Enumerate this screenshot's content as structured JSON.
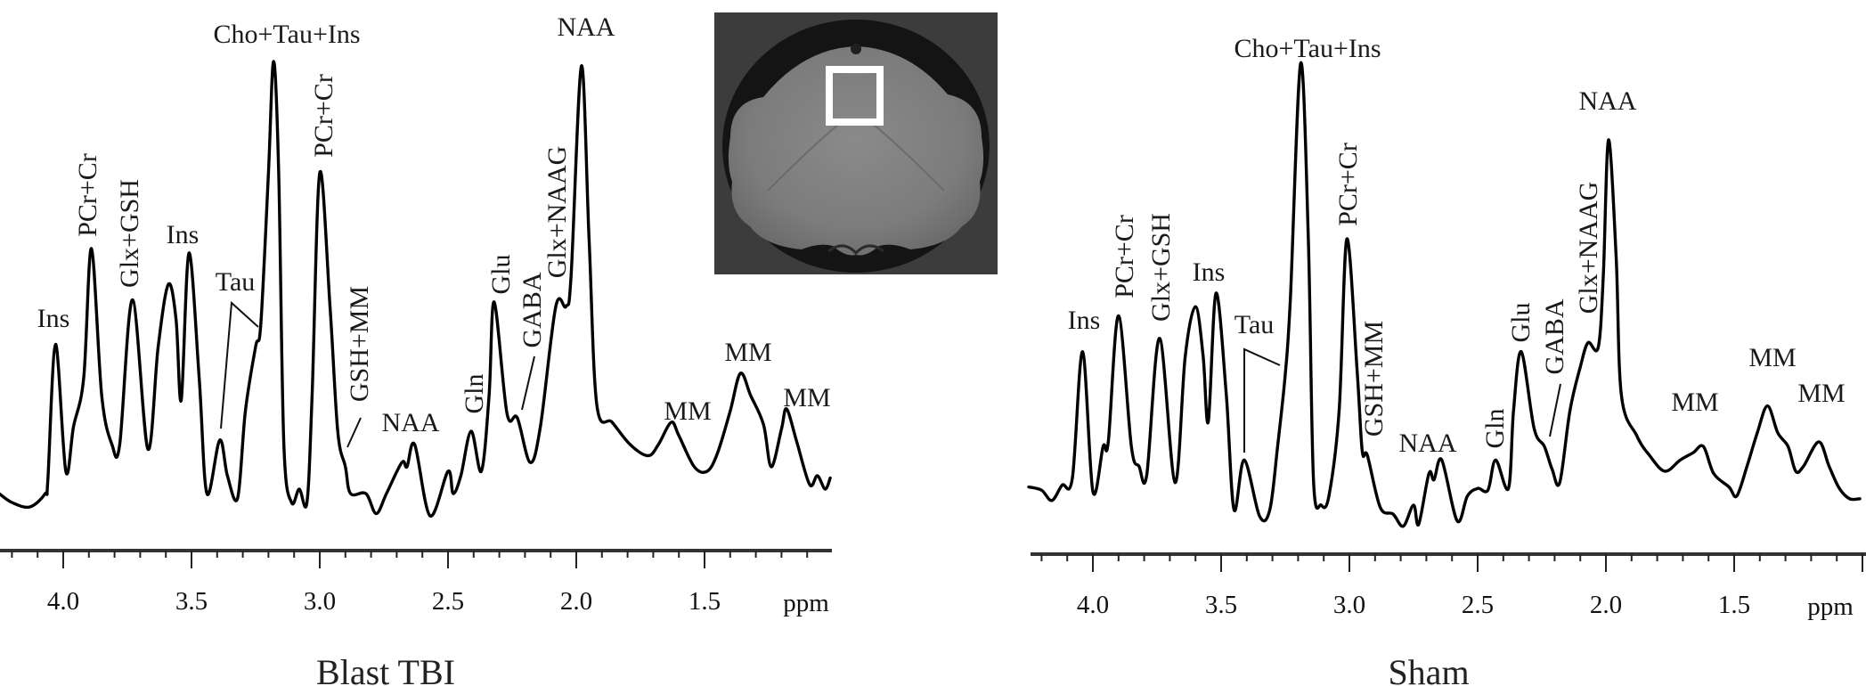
{
  "chart_data": [
    {
      "type": "line",
      "title": "Blast TBI",
      "xlabel": "ppm",
      "ylabel": "",
      "xlim": [
        4.25,
        1.0
      ],
      "x_reversed": true,
      "grid": false,
      "xticks": [
        "4.0",
        "3.5",
        "3.0",
        "2.5",
        "2.0",
        "1.5"
      ],
      "xtick_values": [
        4.0,
        3.5,
        3.0,
        2.5,
        2.0,
        1.5
      ],
      "intensity_units": "arbitrary (tallest peak = 100)",
      "annotations": [
        {
          "text": "Ins",
          "ppm": 4.03
        },
        {
          "text": "PCr+Cr",
          "ppm": 3.89
        },
        {
          "text": "Glx+GSH",
          "ppm": 3.73
        },
        {
          "text": "Ins",
          "ppm": 3.51
        },
        {
          "text": "Tau",
          "ppm": 3.39
        },
        {
          "text": "Cho+Tau+Ins",
          "ppm": 3.18
        },
        {
          "text": "PCr+Cr",
          "ppm": 3.0
        },
        {
          "text": "GSH+MM",
          "ppm": 2.9
        },
        {
          "text": "NAA",
          "ppm": 2.63
        },
        {
          "text": "Gln",
          "ppm": 2.41
        },
        {
          "text": "Glu",
          "ppm": 2.32
        },
        {
          "text": "GABA",
          "ppm": 2.23
        },
        {
          "text": "Glx+NAAG",
          "ppm": 2.08
        },
        {
          "text": "NAA",
          "ppm": 1.98
        },
        {
          "text": "MM",
          "ppm": 1.63
        },
        {
          "text": "MM",
          "ppm": 1.36
        },
        {
          "text": "MM",
          "ppm": 1.18
        }
      ],
      "series": [
        {
          "name": "Blast TBI spectrum",
          "points": [
            [
              4.25,
              3
            ],
            [
              4.2,
              1
            ],
            [
              4.13,
              0
            ],
            [
              4.07,
              3
            ],
            [
              4.06,
              6
            ],
            [
              4.03,
              36.5
            ],
            [
              3.99,
              8
            ],
            [
              3.96,
              18
            ],
            [
              3.92,
              29
            ],
            [
              3.89,
              58
            ],
            [
              3.85,
              25
            ],
            [
              3.81,
              14
            ],
            [
              3.78,
              14
            ],
            [
              3.73,
              46.5
            ],
            [
              3.67,
              13
            ],
            [
              3.63,
              36
            ],
            [
              3.59,
              50
            ],
            [
              3.56,
              42
            ],
            [
              3.54,
              24
            ],
            [
              3.51,
              57
            ],
            [
              3.47,
              29
            ],
            [
              3.44,
              3
            ],
            [
              3.39,
              15
            ],
            [
              3.36,
              7
            ],
            [
              3.32,
              2
            ],
            [
              3.29,
              21.5
            ],
            [
              3.25,
              36
            ],
            [
              3.23,
              41
            ],
            [
              3.2,
              75
            ],
            [
              3.18,
              100
            ],
            [
              3.16,
              75
            ],
            [
              3.14,
              14
            ],
            [
              3.11,
              1
            ],
            [
              3.08,
              4
            ],
            [
              3.05,
              1
            ],
            [
              3.03,
              25
            ],
            [
              3.0,
              75
            ],
            [
              2.96,
              45
            ],
            [
              2.93,
              17
            ],
            [
              2.9,
              9
            ],
            [
              2.88,
              3
            ],
            [
              2.82,
              3
            ],
            [
              2.78,
              -1.5
            ],
            [
              2.74,
              3
            ],
            [
              2.68,
              10
            ],
            [
              2.66,
              9
            ],
            [
              2.63,
              14
            ],
            [
              2.57,
              -2
            ],
            [
              2.5,
              8
            ],
            [
              2.48,
              3
            ],
            [
              2.45,
              7
            ],
            [
              2.41,
              17
            ],
            [
              2.37,
              8
            ],
            [
              2.34,
              25
            ],
            [
              2.32,
              46
            ],
            [
              2.27,
              21
            ],
            [
              2.23,
              20
            ],
            [
              2.18,
              10
            ],
            [
              2.14,
              18
            ],
            [
              2.08,
              45
            ],
            [
              2.04,
              45
            ],
            [
              2.02,
              52
            ],
            [
              1.98,
              99
            ],
            [
              1.95,
              60
            ],
            [
              1.92,
              23
            ],
            [
              1.86,
              19
            ],
            [
              1.79,
              14
            ],
            [
              1.72,
              11.5
            ],
            [
              1.68,
              14
            ],
            [
              1.63,
              19
            ],
            [
              1.6,
              16
            ],
            [
              1.54,
              9
            ],
            [
              1.49,
              8
            ],
            [
              1.45,
              12
            ],
            [
              1.4,
              21.5
            ],
            [
              1.36,
              30
            ],
            [
              1.32,
              25
            ],
            [
              1.27,
              18.5
            ],
            [
              1.24,
              9
            ],
            [
              1.2,
              17.5
            ],
            [
              1.18,
              22
            ],
            [
              1.14,
              14.5
            ],
            [
              1.09,
              5
            ],
            [
              1.06,
              7
            ],
            [
              1.03,
              4
            ],
            [
              1.01,
              6.5
            ]
          ]
        }
      ]
    },
    {
      "type": "line",
      "title": "Sham",
      "xlabel": "ppm",
      "ylabel": "",
      "xlim": [
        4.25,
        1.0
      ],
      "x_reversed": true,
      "grid": false,
      "xticks": [
        "4.0",
        "3.5",
        "3.0",
        "2.5",
        "2.0",
        "1.5"
      ],
      "xtick_values": [
        4.0,
        3.5,
        3.0,
        2.5,
        2.0,
        1.5
      ],
      "intensity_units": "arbitrary (tallest peak = 100)",
      "annotations": [
        {
          "text": "Ins",
          "ppm": 4.04
        },
        {
          "text": "PCr+Cr",
          "ppm": 3.9
        },
        {
          "text": "Glx+GSH",
          "ppm": 3.74
        },
        {
          "text": "Ins",
          "ppm": 3.52
        },
        {
          "text": "Tau",
          "ppm": 3.41
        },
        {
          "text": "Cho+Tau+Ins",
          "ppm": 3.19
        },
        {
          "text": "PCr+Cr",
          "ppm": 3.01
        },
        {
          "text": "GSH+MM",
          "ppm": 2.93
        },
        {
          "text": "NAA",
          "ppm": 2.64
        },
        {
          "text": "Gln",
          "ppm": 2.43
        },
        {
          "text": "Glu",
          "ppm": 2.33
        },
        {
          "text": "GABA",
          "ppm": 2.22
        },
        {
          "text": "Glx+NAAG",
          "ppm": 2.07
        },
        {
          "text": "NAA",
          "ppm": 1.99
        },
        {
          "text": "MM",
          "ppm": 1.62
        },
        {
          "text": "MM",
          "ppm": 1.37
        },
        {
          "text": "MM",
          "ppm": 1.17
        }
      ],
      "series": [
        {
          "name": "Sham spectrum",
          "points": [
            [
              4.25,
              6
            ],
            [
              4.2,
              5.3
            ],
            [
              4.16,
              3
            ],
            [
              4.12,
              6.4
            ],
            [
              4.08,
              8
            ],
            [
              4.04,
              36
            ],
            [
              4.0,
              5
            ],
            [
              3.96,
              15
            ],
            [
              3.94,
              16
            ],
            [
              3.9,
              44
            ],
            [
              3.85,
              15
            ],
            [
              3.82,
              10.6
            ],
            [
              3.79,
              8.7
            ],
            [
              3.74,
              39
            ],
            [
              3.68,
              7
            ],
            [
              3.64,
              35
            ],
            [
              3.6,
              46
            ],
            [
              3.57,
              35
            ],
            [
              3.55,
              20.5
            ],
            [
              3.52,
              49
            ],
            [
              3.48,
              26.5
            ],
            [
              3.45,
              1
            ],
            [
              3.41,
              12
            ],
            [
              3.35,
              -0.5
            ],
            [
              3.31,
              1
            ],
            [
              3.28,
              15
            ],
            [
              3.25,
              31
            ],
            [
              3.23,
              48
            ],
            [
              3.19,
              100
            ],
            [
              3.16,
              61
            ],
            [
              3.14,
              7.5
            ],
            [
              3.11,
              2
            ],
            [
              3.08,
              4
            ],
            [
              3.04,
              23
            ],
            [
              3.01,
              61
            ],
            [
              2.97,
              32
            ],
            [
              2.95,
              14
            ],
            [
              2.93,
              13
            ],
            [
              2.88,
              1.5
            ],
            [
              2.83,
              0
            ],
            [
              2.79,
              -2.7
            ],
            [
              2.75,
              2
            ],
            [
              2.73,
              -2.3
            ],
            [
              2.69,
              9
            ],
            [
              2.67,
              7.6
            ],
            [
              2.64,
              12
            ],
            [
              2.58,
              -1.5
            ],
            [
              2.54,
              4
            ],
            [
              2.5,
              5.7
            ],
            [
              2.46,
              5.3
            ],
            [
              2.43,
              12
            ],
            [
              2.38,
              5.7
            ],
            [
              2.36,
              23
            ],
            [
              2.33,
              36
            ],
            [
              2.28,
              19
            ],
            [
              2.24,
              15
            ],
            [
              2.21,
              10
            ],
            [
              2.18,
              7
            ],
            [
              2.14,
              23
            ],
            [
              2.1,
              32.6
            ],
            [
              2.07,
              38
            ],
            [
              2.03,
              37
            ],
            [
              2.01,
              53
            ],
            [
              1.99,
              83
            ],
            [
              1.96,
              57
            ],
            [
              1.94,
              26.5
            ],
            [
              1.88,
              17.4
            ],
            [
              1.83,
              13
            ],
            [
              1.77,
              9.5
            ],
            [
              1.71,
              12
            ],
            [
              1.66,
              13.6
            ],
            [
              1.62,
              15
            ],
            [
              1.58,
              9
            ],
            [
              1.52,
              6
            ],
            [
              1.49,
              4
            ],
            [
              1.45,
              10.6
            ],
            [
              1.41,
              18
            ],
            [
              1.37,
              24
            ],
            [
              1.33,
              18
            ],
            [
              1.29,
              15
            ],
            [
              1.26,
              9.5
            ],
            [
              1.23,
              10.6
            ],
            [
              1.17,
              16
            ],
            [
              1.13,
              10.6
            ],
            [
              1.09,
              5.7
            ],
            [
              1.05,
              3.4
            ],
            [
              1.01,
              3.4
            ]
          ]
        }
      ]
    }
  ],
  "inset": {
    "image": "coronal-mri-brain-slice",
    "voxel_marker": "white-square"
  },
  "colors": {
    "line": "#000000",
    "text": "#1a1a1a",
    "voxel_box": "#ffffff"
  }
}
